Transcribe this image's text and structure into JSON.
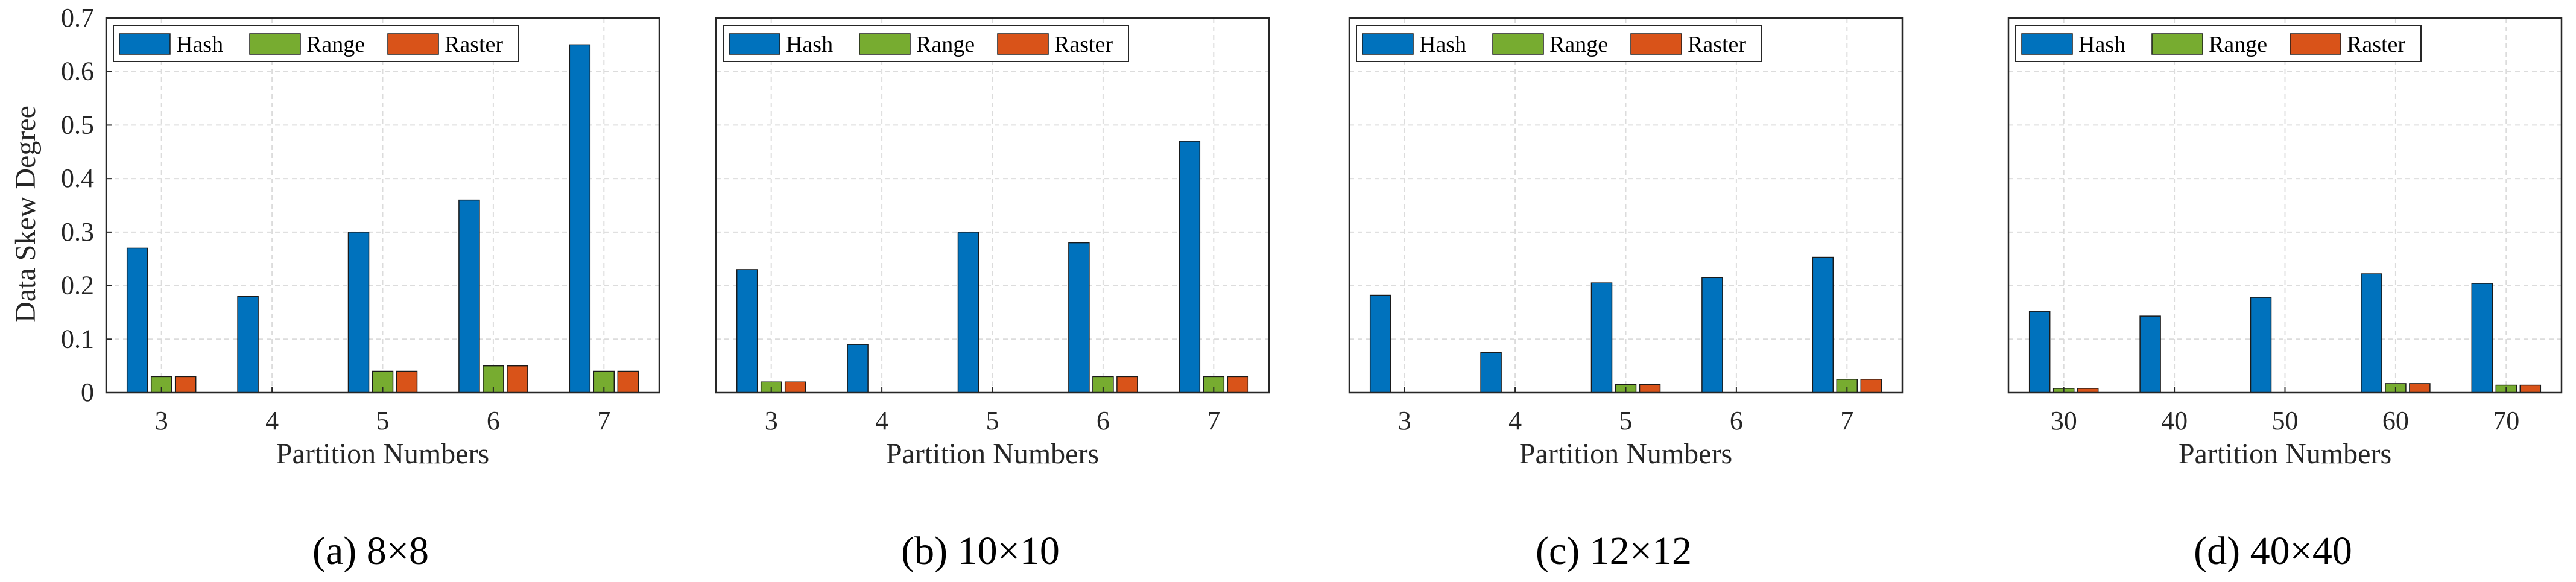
{
  "figure": {
    "y_axis_label": "Data Skew Degree",
    "x_axis_label": "Partition Numbers"
  },
  "chart_data": [
    {
      "type": "bar",
      "title": "(a) 8×8",
      "xlabel": "Partition Numbers",
      "ylabel": "Data Skew Degree",
      "ylim": [
        0,
        0.7
      ],
      "yticks": [
        "0",
        "0.1",
        "0.2",
        "0.3",
        "0.4",
        "0.5",
        "0.6",
        "0.7"
      ],
      "grid": true,
      "legend": "top-left",
      "categories": [
        "3",
        "4",
        "5",
        "6",
        "7"
      ],
      "series": [
        {
          "name": "Hash",
          "color": "#0072BD",
          "values": [
            0.27,
            0.18,
            0.3,
            0.36,
            0.65
          ]
        },
        {
          "name": "Range",
          "color": "#77AC30",
          "values": [
            0.03,
            0,
            0.04,
            0.05,
            0.04
          ]
        },
        {
          "name": "Raster",
          "color": "#D95319",
          "values": [
            0.03,
            0,
            0.04,
            0.05,
            0.04
          ]
        }
      ]
    },
    {
      "type": "bar",
      "title": "(b) 10×10",
      "xlabel": "Partition Numbers",
      "ylabel": "",
      "ylim": [
        0,
        0.7
      ],
      "yticks": [],
      "grid": true,
      "legend": "top-left",
      "categories": [
        "3",
        "4",
        "5",
        "6",
        "7"
      ],
      "series": [
        {
          "name": "Hash",
          "color": "#0072BD",
          "values": [
            0.23,
            0.09,
            0.3,
            0.28,
            0.47
          ]
        },
        {
          "name": "Range",
          "color": "#77AC30",
          "values": [
            0.02,
            0,
            0,
            0.03,
            0.03
          ]
        },
        {
          "name": "Raster",
          "color": "#D95319",
          "values": [
            0.02,
            0,
            0,
            0.03,
            0.03
          ]
        }
      ]
    },
    {
      "type": "bar",
      "title": "(c) 12×12",
      "xlabel": "Partition Numbers",
      "ylabel": "",
      "ylim": [
        0,
        0.7
      ],
      "yticks": [],
      "grid": true,
      "legend": "top-left",
      "categories": [
        "3",
        "4",
        "5",
        "6",
        "7"
      ],
      "series": [
        {
          "name": "Hash",
          "color": "#0072BD",
          "values": [
            0.182,
            0.075,
            0.205,
            0.215,
            0.253
          ]
        },
        {
          "name": "Range",
          "color": "#77AC30",
          "values": [
            0,
            0,
            0.015,
            0,
            0.025
          ]
        },
        {
          "name": "Raster",
          "color": "#D95319",
          "values": [
            0,
            0,
            0.015,
            0,
            0.025
          ]
        }
      ]
    },
    {
      "type": "bar",
      "title": "(d) 40×40",
      "xlabel": "Partition Numbers",
      "ylabel": "",
      "ylim": [
        0,
        0.7
      ],
      "yticks": [],
      "grid": true,
      "legend": "top-left",
      "categories": [
        "30",
        "40",
        "50",
        "60",
        "70"
      ],
      "series": [
        {
          "name": "Hash",
          "color": "#0072BD",
          "values": [
            0.152,
            0.143,
            0.178,
            0.222,
            0.204
          ]
        },
        {
          "name": "Range",
          "color": "#77AC30",
          "values": [
            0.008,
            0,
            0,
            0.017,
            0.014
          ]
        },
        {
          "name": "Raster",
          "color": "#D95319",
          "values": [
            0.008,
            0,
            0,
            0.017,
            0.014
          ]
        }
      ]
    }
  ]
}
